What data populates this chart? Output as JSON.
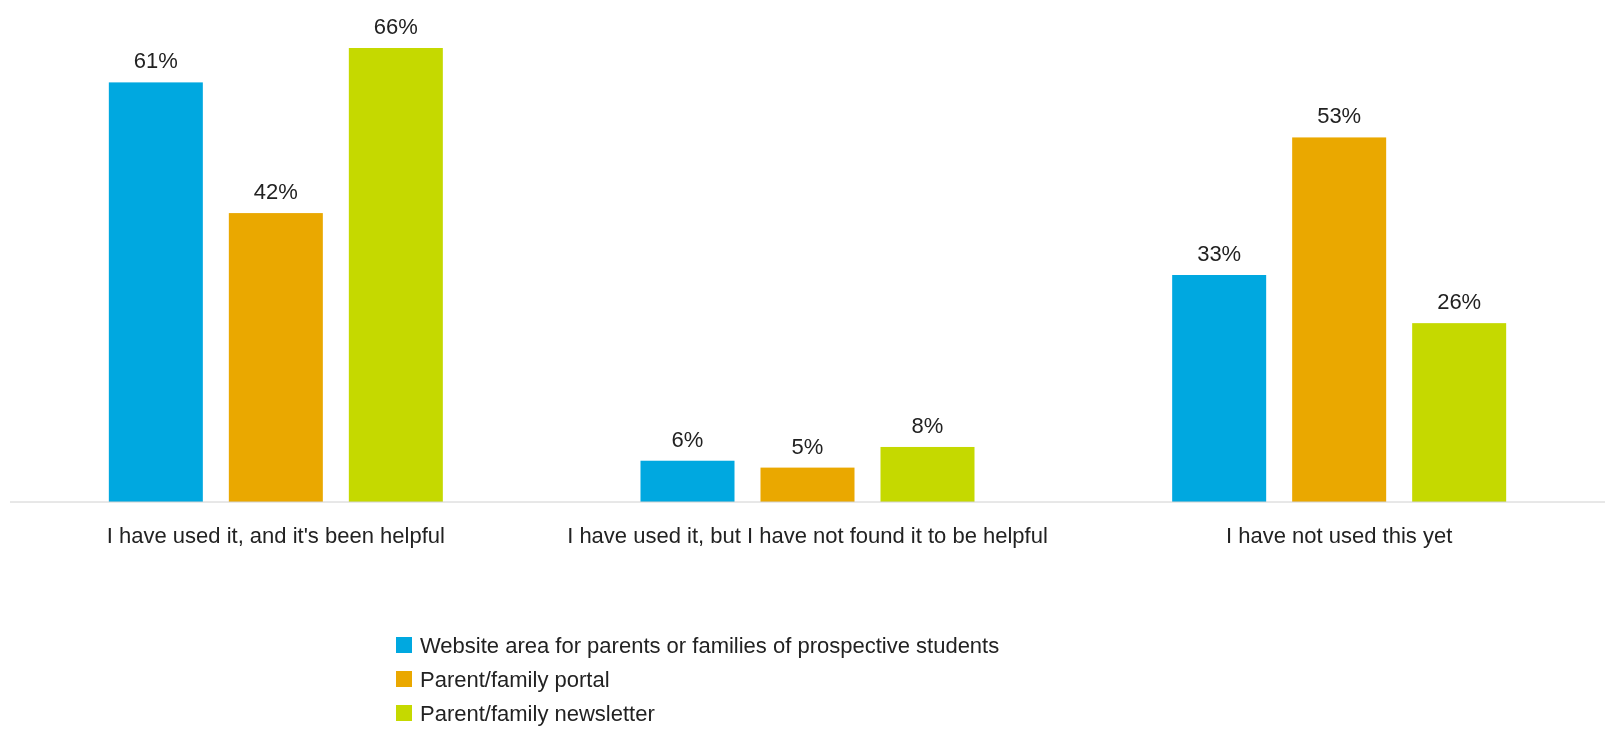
{
  "chart_data": {
    "type": "bar",
    "categories": [
      "I have used it, and it's been helpful",
      "I have used it, but I have not found it to be helpful",
      "I have not used this yet"
    ],
    "series": [
      {
        "name": "Website area for parents or families of prospective students",
        "color": "#00a8e0",
        "values": [
          61,
          6,
          33
        ],
        "value_labels": [
          "61%",
          "6%",
          "33%"
        ]
      },
      {
        "name": "Parent/family portal",
        "color": "#eaa800",
        "values": [
          42,
          5,
          53
        ],
        "value_labels": [
          "42%",
          "5%",
          "53%"
        ]
      },
      {
        "name": "Parent/family newsletter",
        "color": "#c5d900",
        "values": [
          66,
          8,
          26
        ],
        "value_labels": [
          "66%",
          "8%",
          "26%"
        ]
      }
    ],
    "legend": "bottom"
  }
}
